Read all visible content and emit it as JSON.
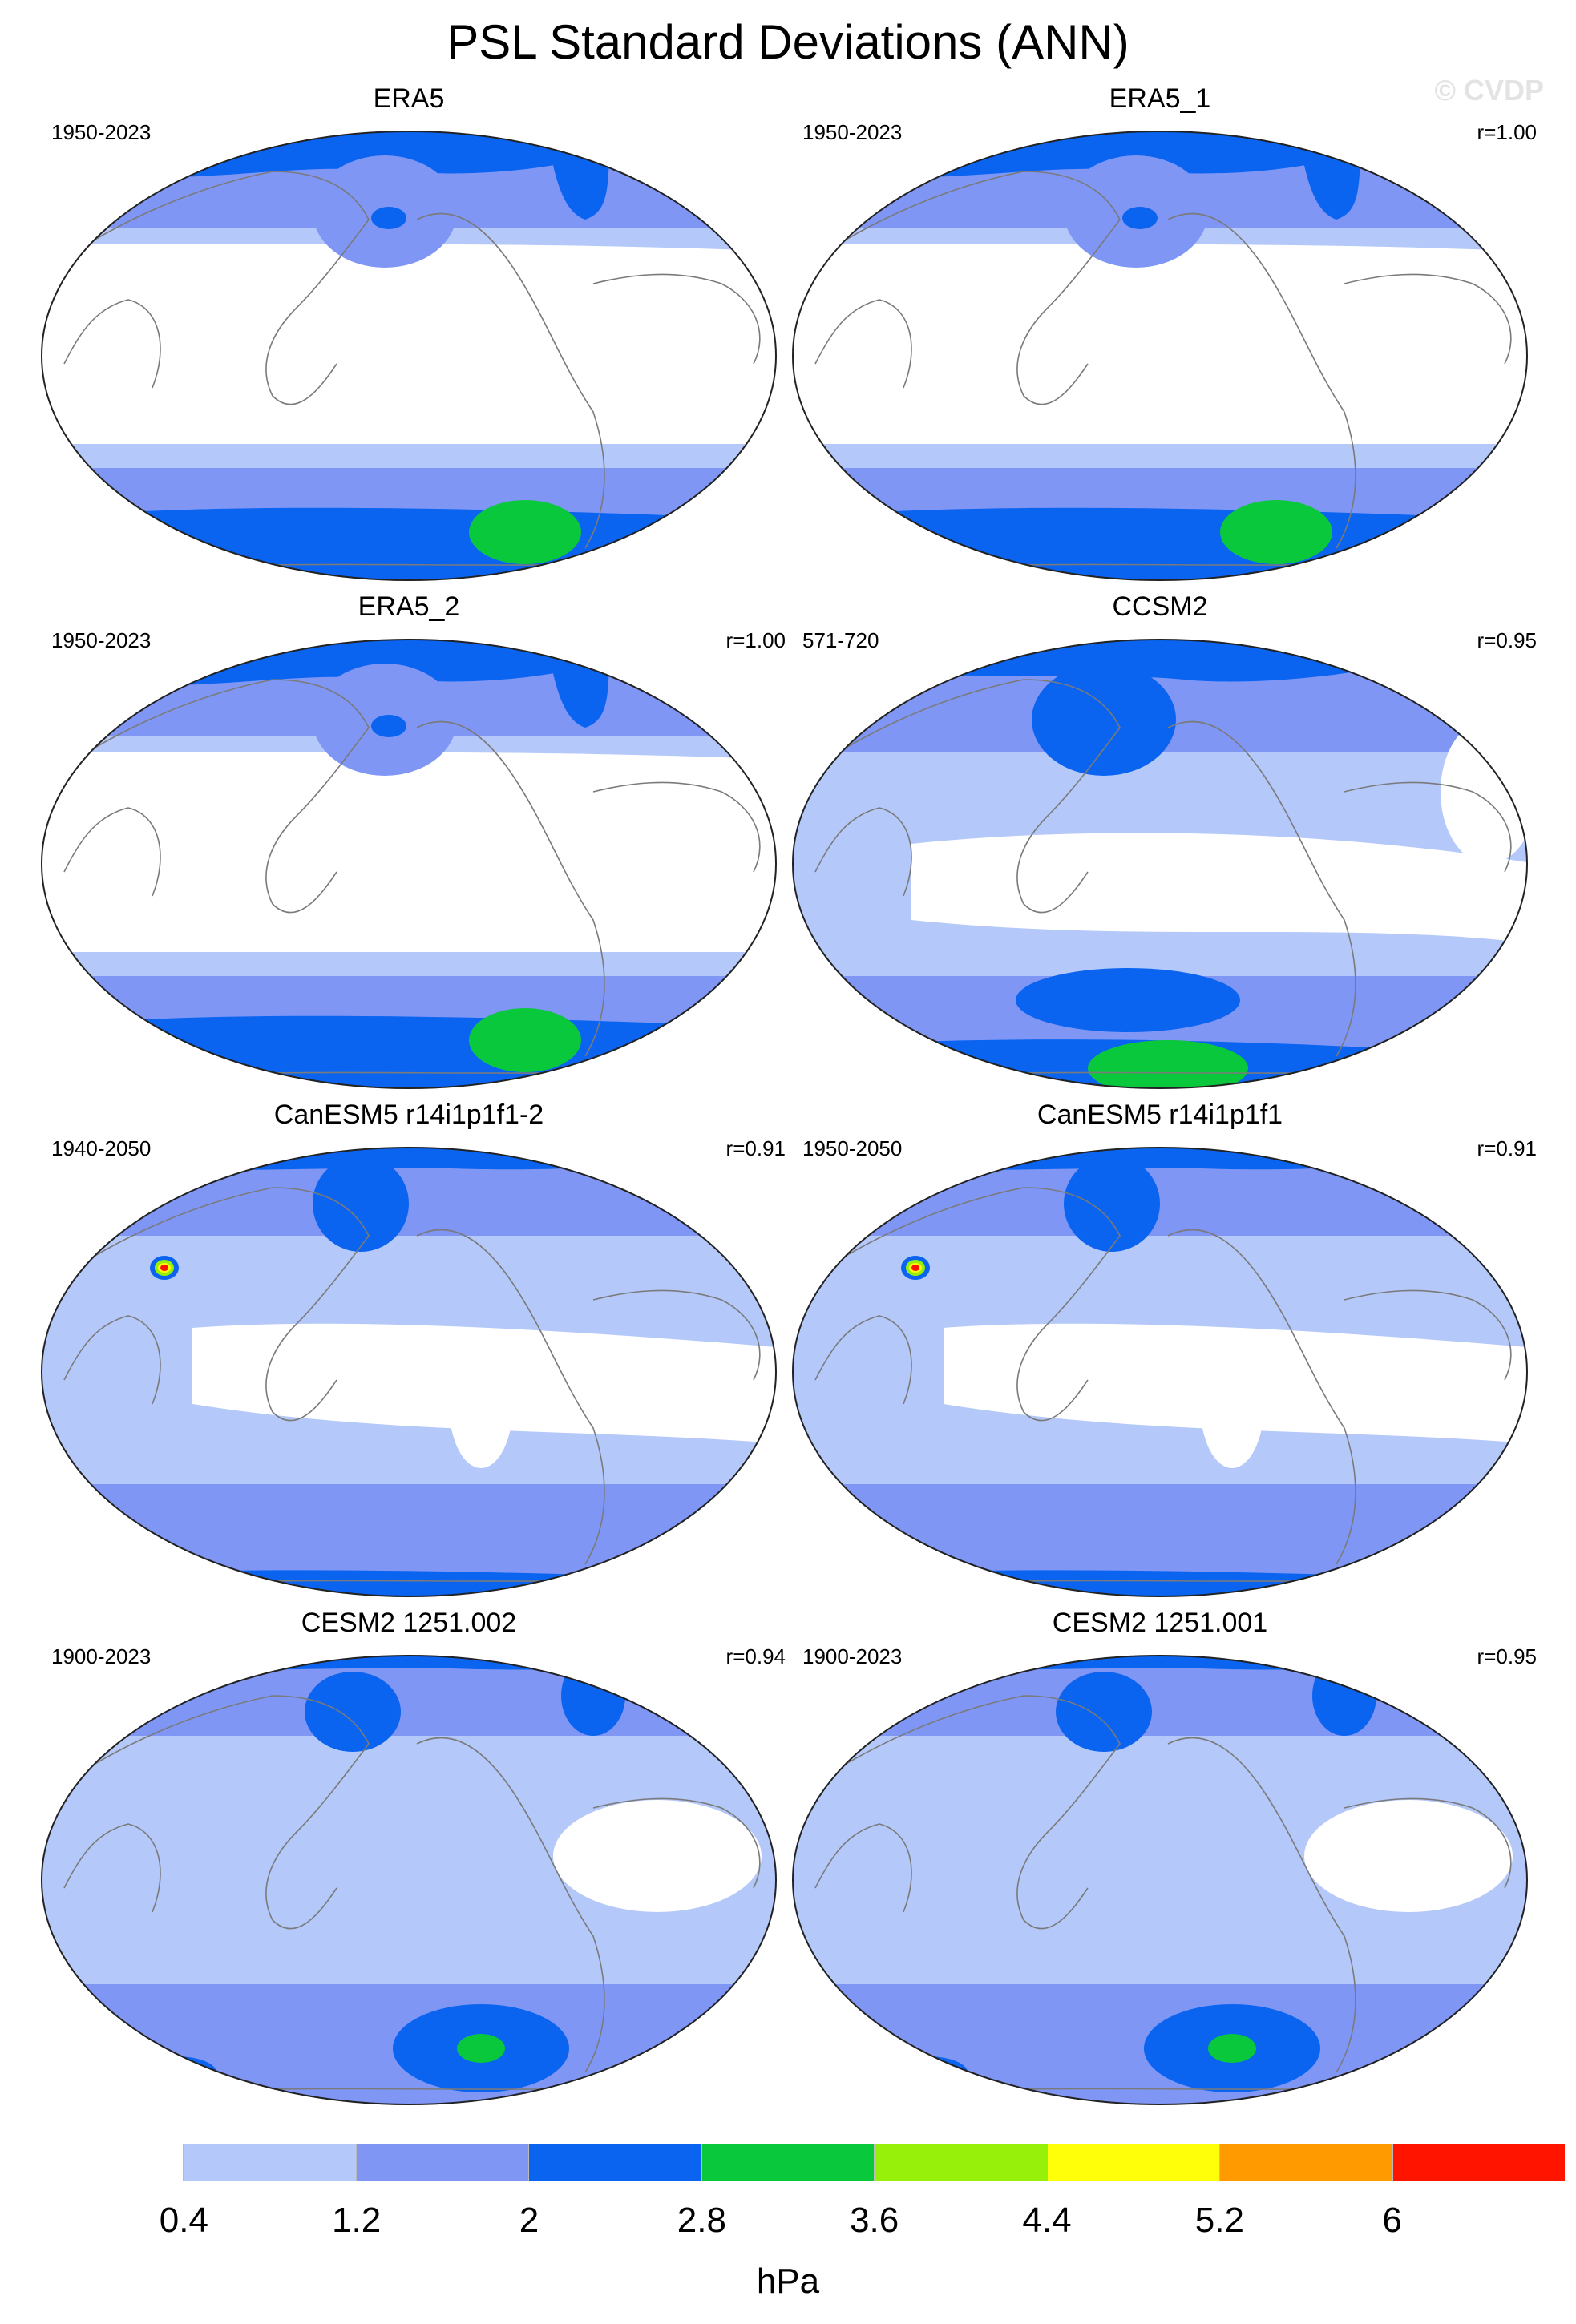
{
  "title": "PSL Standard Deviations (ANN)",
  "watermark": "© CVDP",
  "colorbar": {
    "units": "hPa",
    "tick_labels": [
      "0.4",
      "1.2",
      "2",
      "2.8",
      "3.6",
      "4.4",
      "5.2",
      "6"
    ],
    "colors": [
      "#ffffff",
      "#b4c8fa",
      "#7f96f5",
      "#0a64f0",
      "#0ac83c",
      "#96f00a",
      "#ffff0a",
      "#ff9b00",
      "#ff1400"
    ]
  },
  "panels": [
    {
      "title": "ERA5",
      "years": "1950-2023",
      "corr": "",
      "pattern": "era"
    },
    {
      "title": "ERA5_1",
      "years": "1950-2023",
      "corr": "r=1.00",
      "pattern": "era"
    },
    {
      "title": "ERA5_2",
      "years": "1950-2023",
      "corr": "r=1.00",
      "pattern": "era"
    },
    {
      "title": "CCSM2",
      "years": "571-720",
      "corr": "r=0.95",
      "pattern": "ccsm"
    },
    {
      "title": "CanESM5 r14i1p1f1-2",
      "years": "1940-2050",
      "corr": "r=0.91",
      "pattern": "can"
    },
    {
      "title": "CanESM5 r14i1p1f1",
      "years": "1950-2050",
      "corr": "r=0.91",
      "pattern": "can"
    },
    {
      "title": "CESM2 1251.002",
      "years": "1900-2023",
      "corr": "r=0.94",
      "pattern": "cesm"
    },
    {
      "title": "CESM2 1251.001",
      "years": "1900-2023",
      "corr": "r=0.95",
      "pattern": "cesm"
    }
  ]
}
